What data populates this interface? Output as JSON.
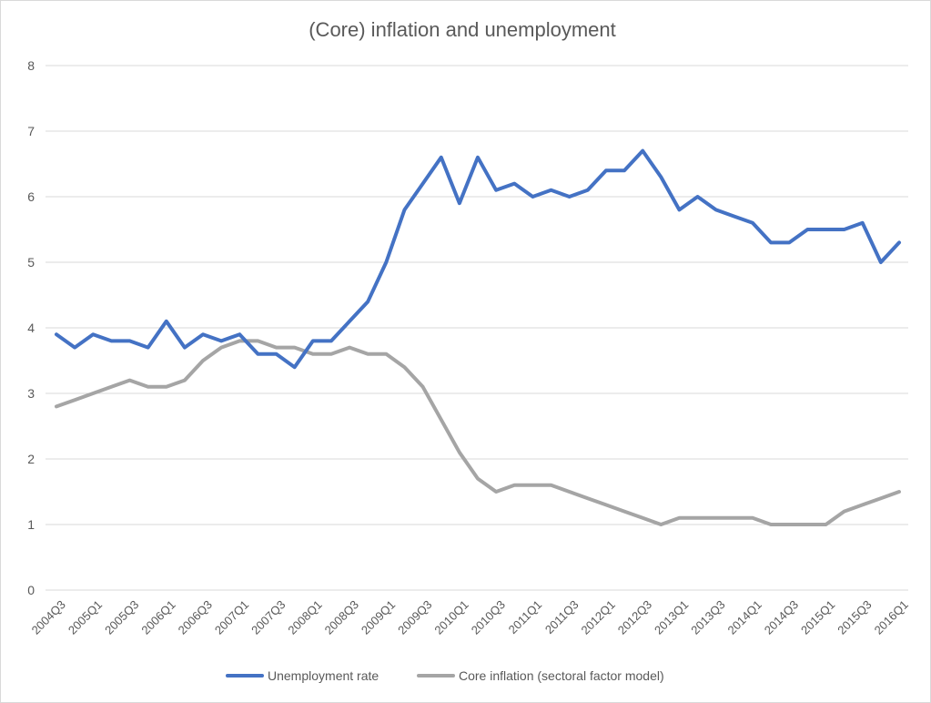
{
  "chart_data": {
    "type": "line",
    "title": "(Core) inflation and unemployment",
    "xlabel": "",
    "ylabel": "",
    "ylim": [
      0,
      8
    ],
    "yticks": [
      0,
      1,
      2,
      3,
      4,
      5,
      6,
      7,
      8
    ],
    "grid": true,
    "legend_position": "bottom",
    "categories": [
      "2004Q3",
      "2004Q4",
      "2005Q1",
      "2005Q2",
      "2005Q3",
      "2005Q4",
      "2006Q1",
      "2006Q2",
      "2006Q3",
      "2006Q4",
      "2007Q1",
      "2007Q2",
      "2007Q3",
      "2007Q4",
      "2008Q1",
      "2008Q2",
      "2008Q3",
      "2008Q4",
      "2009Q1",
      "2009Q2",
      "2009Q3",
      "2009Q4",
      "2010Q1",
      "2010Q2",
      "2010Q3",
      "2010Q4",
      "2011Q1",
      "2011Q2",
      "2011Q3",
      "2011Q4",
      "2012Q1",
      "2012Q2",
      "2012Q3",
      "2012Q4",
      "2013Q1",
      "2013Q2",
      "2013Q3",
      "2013Q4",
      "2014Q1",
      "2014Q2",
      "2014Q3",
      "2014Q4",
      "2015Q1",
      "2015Q2",
      "2015Q3",
      "2015Q4",
      "2016Q1"
    ],
    "tick_labels": [
      "2004Q3",
      "2005Q1",
      "2005Q3",
      "2006Q1",
      "2006Q3",
      "2007Q1",
      "2007Q3",
      "2008Q1",
      "2008Q3",
      "2009Q1",
      "2009Q3",
      "2010Q1",
      "2010Q3",
      "2011Q1",
      "2011Q3",
      "2012Q1",
      "2012Q3",
      "2013Q1",
      "2013Q3",
      "2014Q1",
      "2014Q3",
      "2015Q1",
      "2015Q3",
      "2016Q1"
    ],
    "series": [
      {
        "name": "Unemployment rate",
        "color": "#4472c4",
        "values": [
          3.9,
          3.7,
          3.9,
          3.8,
          3.8,
          3.7,
          4.1,
          3.7,
          3.9,
          3.8,
          3.9,
          3.6,
          3.6,
          3.4,
          3.8,
          3.8,
          4.1,
          4.4,
          5.0,
          5.8,
          6.2,
          6.6,
          5.9,
          6.6,
          6.1,
          6.2,
          6.0,
          6.1,
          6.0,
          6.1,
          6.4,
          6.4,
          6.7,
          6.3,
          5.8,
          6.0,
          5.8,
          5.7,
          5.6,
          5.3,
          5.3,
          5.5,
          5.5,
          5.5,
          5.6,
          5.0,
          5.3
        ]
      },
      {
        "name": "Core inflation (sectoral factor model)",
        "color": "#a5a5a5",
        "values": [
          2.8,
          2.9,
          3.0,
          3.1,
          3.2,
          3.1,
          3.1,
          3.2,
          3.5,
          3.7,
          3.8,
          3.8,
          3.7,
          3.7,
          3.6,
          3.6,
          3.7,
          3.6,
          3.6,
          3.4,
          3.1,
          2.6,
          2.1,
          1.7,
          1.5,
          1.6,
          1.6,
          1.6,
          1.5,
          1.4,
          1.3,
          1.2,
          1.1,
          1.0,
          1.1,
          1.1,
          1.1,
          1.1,
          1.1,
          1.0,
          1.0,
          1.0,
          1.0,
          1.2,
          1.3,
          1.4,
          1.5
        ]
      }
    ]
  }
}
